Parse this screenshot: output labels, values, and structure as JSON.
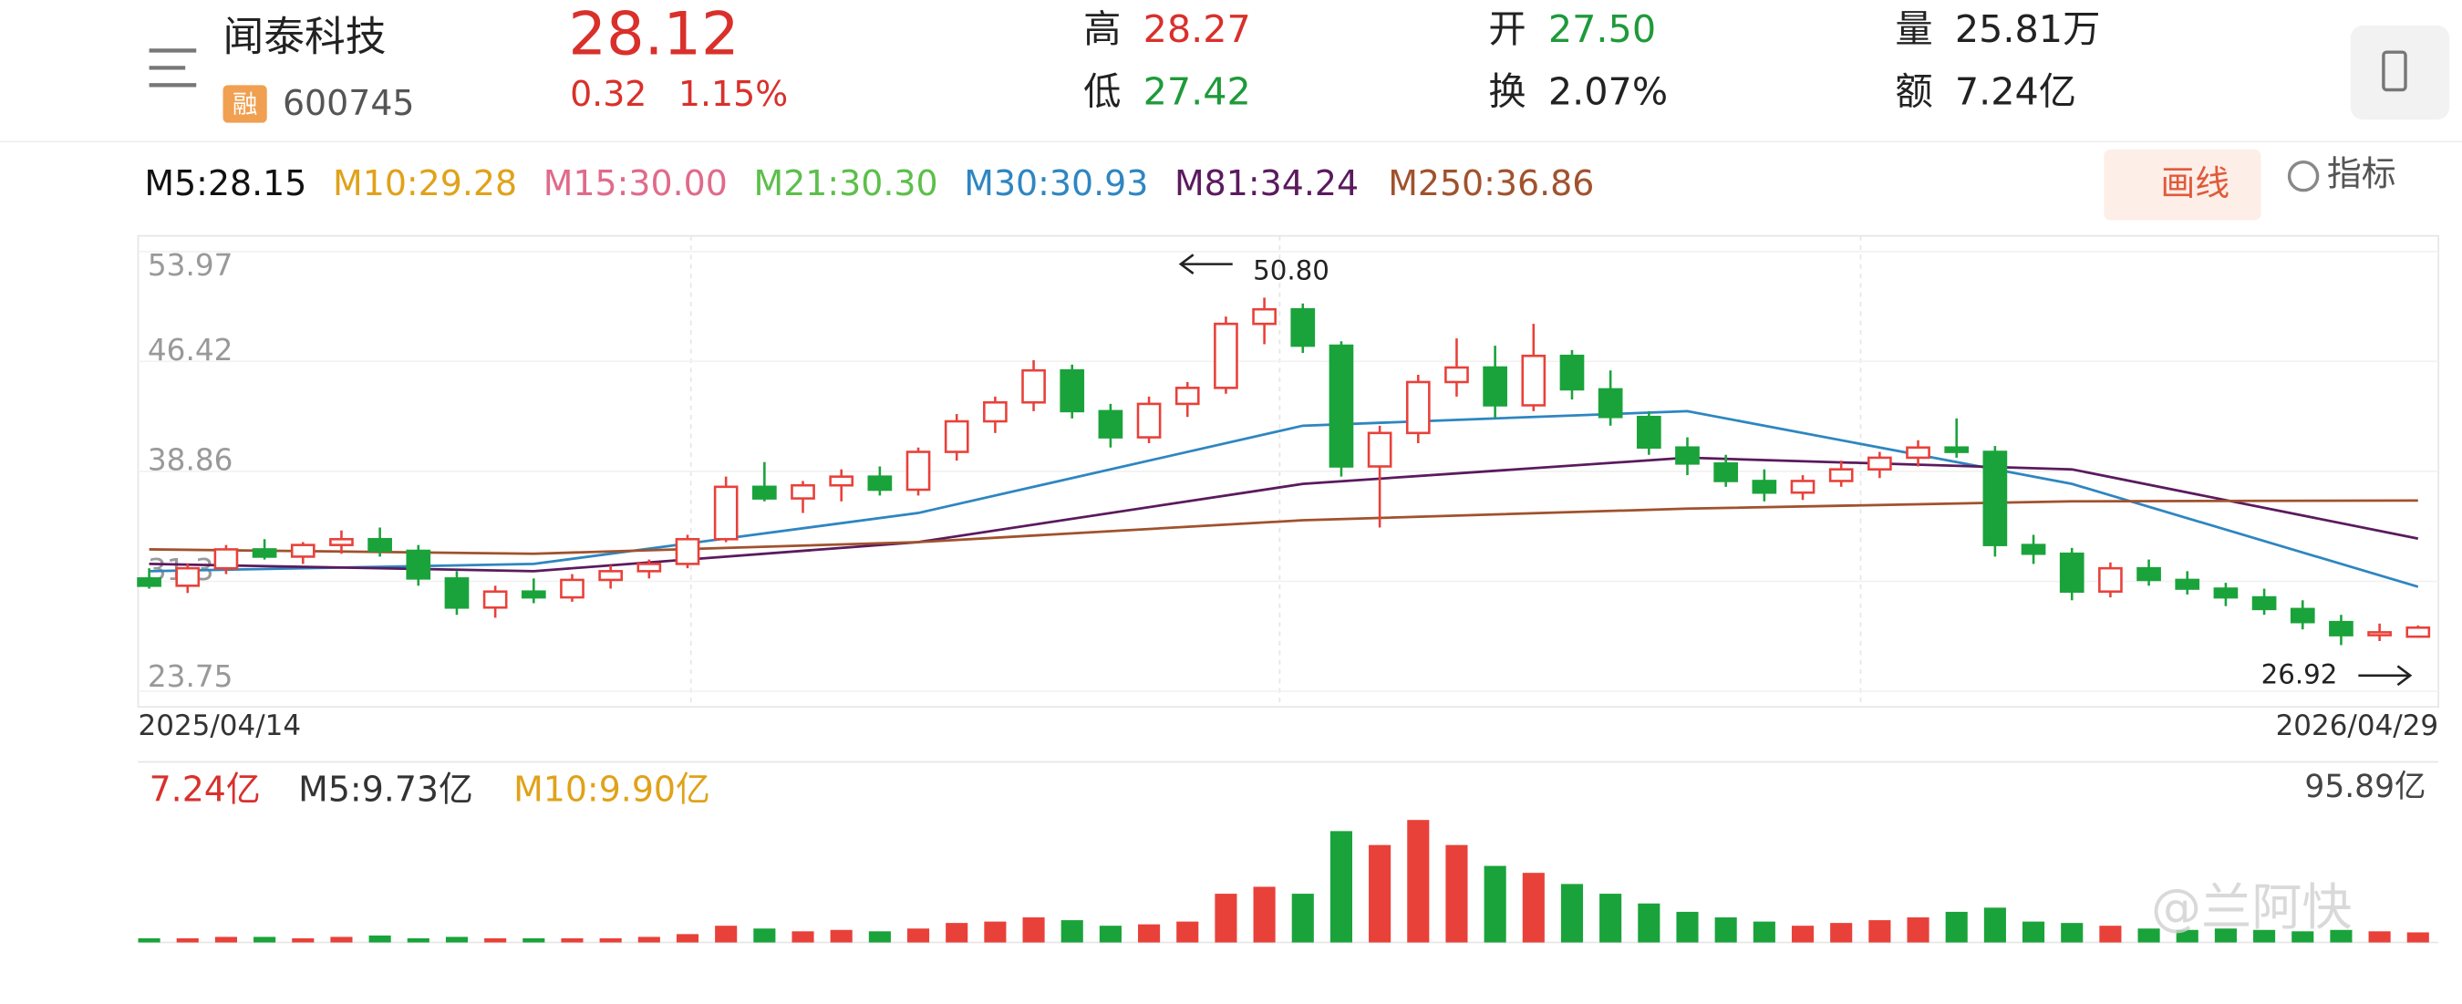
{
  "header": {
    "name": "闻泰科技",
    "tag": "融",
    "code": "600745",
    "price": "28.12",
    "change": "0.32",
    "change_pct": "1.15%",
    "stats": [
      {
        "label": "高",
        "value": "28.27",
        "color": "#d9302b"
      },
      {
        "label": "低",
        "value": "27.42",
        "color": "#1e9a3a"
      },
      {
        "label": "开",
        "value": "27.50",
        "color": "#1e9a3a"
      },
      {
        "label": "换",
        "value": "2.07%",
        "color": "#222222"
      },
      {
        "label": "量",
        "value": "25.81万",
        "color": "#222222"
      },
      {
        "label": "额",
        "value": "7.24亿",
        "color": "#222222"
      }
    ]
  },
  "ma_legend": [
    {
      "label": "M5:28.15",
      "color": "#111111"
    },
    {
      "label": "M10:29.28",
      "color": "#e0a21a"
    },
    {
      "label": "M15:30.00",
      "color": "#e06a8a"
    },
    {
      "label": "M21:30.30",
      "color": "#5cbf4a"
    },
    {
      "label": "M30:30.93",
      "color": "#2e86c1"
    },
    {
      "label": "M81:34.24",
      "color": "#5b1a5e"
    },
    {
      "label": "M250:36.86",
      "color": "#a0522d"
    }
  ],
  "buttons": {
    "draw": "画线",
    "indicator": "指标"
  },
  "watermark": "@兰阿快",
  "chart_data": [
    {
      "type": "candlestick",
      "up_color": "#e8413a",
      "down_color": "#1aa33b",
      "ylim": [
        23.75,
        53.97
      ],
      "yticks": [
        53.97,
        46.42,
        38.86,
        31.3,
        23.75
      ],
      "x_labels": [
        "2025/04/14",
        "2026/04/29"
      ],
      "annotations": [
        "50.80",
        "26.92"
      ],
      "open": [
        31.5,
        31.0,
        32.2,
        33.5,
        33.0,
        33.8,
        34.2,
        33.4,
        31.5,
        29.5,
        30.6,
        30.2,
        31.4,
        32.0,
        32.5,
        34.2,
        37.8,
        37.0,
        37.9,
        38.5,
        37.6,
        40.2,
        42.3,
        43.6,
        45.8,
        43.0,
        41.2,
        43.5,
        44.6,
        49.0,
        50.0,
        47.5,
        39.2,
        41.5,
        45.0,
        46.0,
        43.4,
        46.8,
        44.5,
        42.6,
        40.5,
        39.4,
        38.2,
        37.4,
        38.2,
        39.0,
        39.8,
        40.5,
        40.2,
        33.8,
        33.2,
        30.6,
        32.2,
        31.4,
        30.8,
        30.2,
        29.4,
        28.5,
        27.6,
        27.5
      ],
      "high": [
        32.2,
        32.5,
        33.8,
        34.2,
        34.0,
        34.8,
        35.0,
        33.8,
        32.0,
        31.0,
        31.5,
        31.8,
        32.4,
        32.8,
        34.5,
        38.5,
        39.5,
        38.2,
        39.0,
        39.2,
        40.5,
        42.8,
        44.0,
        46.5,
        46.2,
        43.5,
        44.0,
        45.0,
        49.5,
        50.8,
        50.4,
        47.8,
        42.0,
        45.5,
        48.0,
        47.5,
        49.0,
        47.2,
        45.8,
        43.0,
        41.2,
        40.0,
        39.0,
        38.6,
        39.6,
        40.2,
        41.0,
        42.5,
        40.6,
        34.5,
        33.6,
        32.6,
        32.8,
        32.0,
        31.2,
        30.8,
        30.0,
        29.0,
        28.4,
        28.27
      ],
      "low": [
        30.8,
        30.5,
        31.8,
        32.8,
        32.5,
        33.2,
        33.0,
        31.0,
        29.0,
        28.8,
        29.8,
        29.9,
        30.8,
        31.5,
        32.2,
        34.0,
        36.8,
        36.0,
        36.8,
        37.2,
        37.2,
        39.6,
        41.5,
        43.0,
        42.5,
        40.5,
        40.8,
        42.6,
        44.2,
        47.6,
        47.0,
        38.5,
        35.0,
        40.8,
        44.0,
        42.5,
        43.0,
        43.8,
        42.0,
        40.0,
        38.6,
        37.8,
        36.8,
        36.9,
        37.8,
        38.4,
        39.2,
        39.8,
        33.0,
        32.5,
        30.0,
        30.2,
        31.0,
        30.4,
        29.6,
        29.0,
        28.0,
        26.92,
        27.2,
        27.42
      ],
      "close": [
        31.0,
        32.2,
        33.5,
        33.0,
        33.8,
        34.2,
        33.4,
        31.5,
        29.5,
        30.6,
        30.2,
        31.4,
        32.0,
        32.5,
        34.2,
        37.8,
        37.0,
        37.9,
        38.5,
        37.6,
        40.2,
        42.3,
        43.6,
        45.8,
        43.0,
        41.2,
        43.5,
        44.6,
        49.0,
        50.0,
        47.5,
        39.2,
        41.5,
        45.0,
        46.0,
        43.4,
        46.8,
        44.5,
        42.6,
        40.5,
        39.4,
        38.2,
        37.4,
        38.2,
        39.0,
        39.8,
        40.5,
        40.2,
        33.8,
        33.2,
        30.6,
        32.2,
        31.4,
        30.8,
        30.2,
        29.4,
        28.5,
        27.6,
        27.8,
        28.12
      ],
      "lines": [
        {
          "name": "M30",
          "color": "#2e86c1",
          "x": [
            0,
            10,
            20,
            30,
            40,
            50,
            59
          ],
          "values": [
            32,
            32.5,
            36,
            42,
            43,
            38,
            30.93
          ]
        },
        {
          "name": "M81",
          "color": "#5b1a5e",
          "x": [
            0,
            10,
            20,
            30,
            40,
            50,
            59
          ],
          "values": [
            32.5,
            32,
            34,
            38,
            39.8,
            39,
            34.24
          ]
        },
        {
          "name": "M250",
          "color": "#a0522d",
          "x": [
            0,
            10,
            20,
            30,
            40,
            50,
            59
          ],
          "values": [
            33.5,
            33.2,
            34,
            35.5,
            36.3,
            36.8,
            36.86
          ]
        }
      ]
    },
    {
      "type": "volume",
      "legend": [
        {
          "label": "7.24亿",
          "color": "#d9302b"
        },
        {
          "label": "M5:9.73亿",
          "color": "#333333"
        },
        {
          "label": "M10:9.90亿",
          "color": "#e0a21a"
        }
      ],
      "ylim": [
        0,
        95.89
      ],
      "yticks": [
        {
          "value": 95.89,
          "label": "95.89亿"
        }
      ],
      "values": [
        3,
        3,
        4,
        4,
        3,
        4,
        5,
        3,
        4,
        3,
        3,
        3,
        3,
        4,
        6,
        12,
        10,
        8,
        9,
        8,
        10,
        14,
        15,
        18,
        16,
        12,
        13,
        15,
        35,
        40,
        35,
        80,
        70,
        88,
        70,
        55,
        50,
        42,
        35,
        28,
        22,
        18,
        15,
        12,
        14,
        16,
        18,
        22,
        25,
        15,
        14,
        12,
        10,
        9,
        10,
        9,
        8,
        9,
        8,
        7.24
      ]
    }
  ]
}
